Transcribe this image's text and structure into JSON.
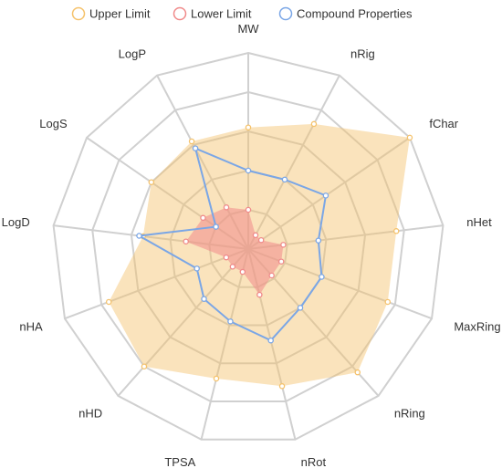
{
  "chart_data": {
    "type": "radar",
    "axes": [
      "MW",
      "nRig",
      "fChar",
      "nHet",
      "MaxRing",
      "nRing",
      "nRot",
      "TPSA",
      "nHD",
      "nHA",
      "LogD",
      "LogS",
      "LogP"
    ],
    "max": 5,
    "ring_count": 5,
    "grid": true,
    "legend_position": "top",
    "series": [
      {
        "name": "Upper Limit",
        "color": "#f5c26b",
        "fill": "rgba(245,194,107,0.45)",
        "values": [
          3.1,
          3.6,
          5.0,
          3.8,
          3.8,
          4.2,
          3.6,
          3.4,
          4.0,
          3.8,
          2.7,
          3.0,
          3.1
        ]
      },
      {
        "name": "Lower Limit",
        "color": "#f08a8a",
        "fill": "rgba(240,138,138,0.55)",
        "values": [
          1.0,
          0.4,
          0.4,
          0.9,
          0.9,
          0.9,
          1.2,
          0.6,
          0.6,
          0.6,
          1.6,
          1.4,
          1.2
        ]
      },
      {
        "name": "Compound Properties",
        "color": "#7aa6e6",
        "fill": "none",
        "values": [
          2.0,
          2.0,
          2.4,
          1.8,
          2.0,
          2.0,
          2.4,
          1.9,
          1.7,
          1.4,
          2.8,
          1.0,
          2.9
        ]
      }
    ]
  }
}
